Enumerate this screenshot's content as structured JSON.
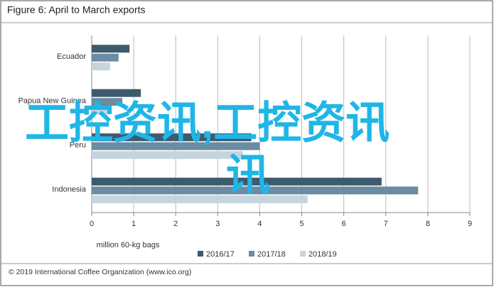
{
  "chart_data": {
    "type": "hbar",
    "title": "Figure 6: April to March exports",
    "categories": [
      "Ecuador",
      "Papua New Guinea",
      "Peru",
      "Indonesia"
    ],
    "series": [
      {
        "name": "2016/17",
        "color": "#3e5a6d",
        "values": [
          0.9,
          1.17,
          3.8,
          6.9
        ]
      },
      {
        "name": "2017/18",
        "color": "#6b8ca1",
        "values": [
          0.64,
          0.73,
          4.0,
          7.77
        ]
      },
      {
        "name": "2018/19",
        "color": "#c6d4df",
        "values": [
          0.44,
          0.36,
          3.6,
          5.14
        ]
      }
    ],
    "xlim": [
      0,
      9
    ],
    "xticks": [
      0,
      1,
      2,
      3,
      4,
      5,
      6,
      7,
      8,
      9
    ],
    "grid": true,
    "xlabel": "million 60-kg bags",
    "legend": "bottom",
    "source": "© 2019 International Coffee Organization (www.ico.org)",
    "watermark": [
      "工控资讯,工控资讯",
      "讯"
    ]
  }
}
